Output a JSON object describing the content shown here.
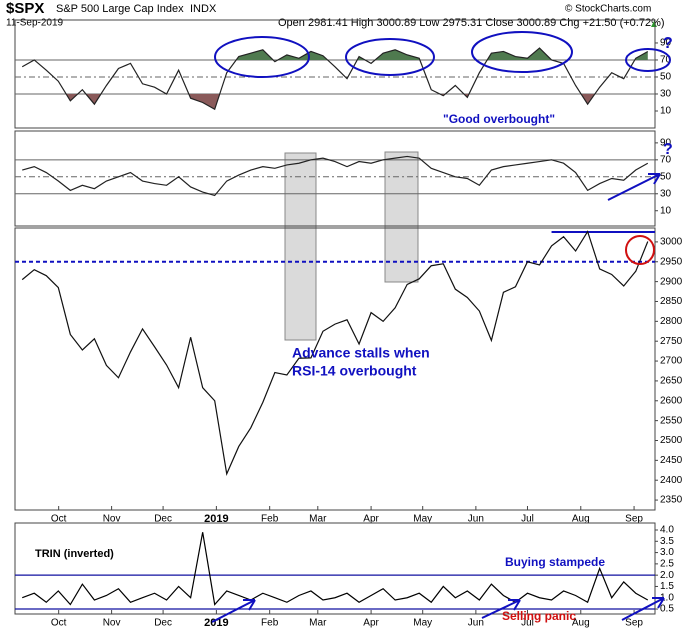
{
  "header": {
    "symbol": "$SPX",
    "name": "S&P 500 Large Cap Index",
    "exchange": "INDX",
    "date": "11-Sep-2019",
    "quote": "Open 2981.41 High 3000.89 Low 2975.31 Close 3000.89 Chg +21.50 (+0.72%)",
    "credit": "© StockCharts.com"
  },
  "annotations": {
    "q1": "?",
    "q2": "?",
    "good_overbought": "\"Good overbought\"",
    "stalls_1": "Advance stalls when",
    "stalls_2": "RSI-14 overbought",
    "trin": "TRIN (inverted)",
    "stampede": "Buying stampede",
    "panic": "Selling panic"
  },
  "chart_data": [
    {
      "type": "line",
      "color": "#222222",
      "upper_fill": 70,
      "upper_color": "#4f7a4f",
      "lower_fill": 30,
      "lower_color": "#8a5a5a",
      "ylim": [
        -10,
        117
      ],
      "yticks": [
        10,
        30,
        50,
        70,
        90
      ],
      "hlines": [
        70,
        50,
        30
      ],
      "xlim": [
        -0.6,
        52.6
      ],
      "values": [
        62,
        70,
        58,
        45,
        22,
        35,
        18,
        40,
        60,
        66,
        42,
        38,
        30,
        58,
        25,
        20,
        12,
        55,
        74,
        78,
        82,
        68,
        76,
        72,
        80,
        75,
        62,
        48,
        74,
        66,
        78,
        82,
        76,
        72,
        35,
        28,
        40,
        26,
        55,
        78,
        80,
        74,
        72,
        84,
        70,
        66,
        40,
        18,
        38,
        55,
        48,
        72,
        80
      ]
    },
    {
      "type": "line",
      "color": "#222222",
      "ylim": [
        -8,
        104
      ],
      "yticks": [
        10,
        30,
        50,
        70,
        90
      ],
      "hlines": [
        70,
        50,
        30
      ],
      "xlim": [
        -0.6,
        52.6
      ],
      "values": [
        58,
        62,
        55,
        45,
        34,
        40,
        36,
        45,
        50,
        55,
        45,
        42,
        40,
        50,
        38,
        32,
        28,
        45,
        52,
        58,
        62,
        60,
        64,
        66,
        70,
        72,
        68,
        62,
        68,
        66,
        70,
        72,
        74,
        72,
        60,
        55,
        50,
        48,
        40,
        58,
        62,
        64,
        66,
        68,
        70,
        66,
        55,
        34,
        42,
        48,
        46,
        58,
        66
      ]
    },
    {
      "type": "line",
      "color": "#111111",
      "ylim": [
        2325,
        3035
      ],
      "yticks": [
        2350,
        2400,
        2450,
        2500,
        2550,
        2600,
        2650,
        2700,
        2750,
        2800,
        2850,
        2900,
        2950,
        3000
      ],
      "xlim": [
        -0.6,
        52.6
      ],
      "xticks": [
        {
          "value": 3.03,
          "label": "Oct"
        },
        {
          "value": 7.43,
          "label": "Nov"
        },
        {
          "value": 11.71,
          "label": "Dec"
        },
        {
          "value": 16.14,
          "label": "2019"
        },
        {
          "value": 20.57,
          "label": "Feb"
        },
        {
          "value": 24.57,
          "label": "Mar"
        },
        {
          "value": 29,
          "label": "Apr"
        },
        {
          "value": 33.29,
          "label": "May"
        },
        {
          "value": 37.71,
          "label": "Jun"
        },
        {
          "value": 42,
          "label": "Jul"
        },
        {
          "value": 46.43,
          "label": "Aug"
        },
        {
          "value": 50.86,
          "label": "Sep"
        }
      ],
      "reference_lines": [
        {
          "value": 2950,
          "style": "dashed",
          "color": "#1010c0"
        },
        {
          "value": 3025,
          "style": "solid",
          "color": "#1010c0",
          "from": 44
        }
      ],
      "values": [
        2905,
        2930,
        2915,
        2885,
        2767,
        2728,
        2756,
        2689,
        2658,
        2723,
        2781,
        2736,
        2690,
        2633,
        2760,
        2633,
        2600,
        2416,
        2485,
        2532,
        2596,
        2671,
        2665,
        2707,
        2708,
        2775,
        2793,
        2804,
        2743,
        2822,
        2800,
        2834,
        2893,
        2907,
        2940,
        2945,
        2881,
        2860,
        2826,
        2752,
        2873,
        2887,
        2950,
        2942,
        2990,
        3013,
        2977,
        3026,
        2932,
        2918,
        2889,
        2926,
        3001
      ]
    },
    {
      "type": "line",
      "color": "#000000",
      "ylim": [
        0.28,
        4.31
      ],
      "yticks": [
        0.5,
        {
          "value": 1,
          "label": "1.0"
        },
        1.5,
        {
          "value": 2,
          "label": "2.0"
        },
        2.5,
        {
          "value": 3,
          "label": "3.0"
        },
        3.5,
        {
          "value": 4,
          "label": "4.0"
        }
      ],
      "hlines": [
        2,
        0.5
      ],
      "hline_color": "#1010a0",
      "xlim": [
        -0.6,
        52.6
      ],
      "xticks": [
        {
          "value": 3.03,
          "label": "Oct"
        },
        {
          "value": 7.43,
          "label": "Nov"
        },
        {
          "value": 11.71,
          "label": "Dec"
        },
        {
          "value": 16.14,
          "label": "2019"
        },
        {
          "value": 20.57,
          "label": "Feb"
        },
        {
          "value": 24.57,
          "label": "Mar"
        },
        {
          "value": 29,
          "label": "Apr"
        },
        {
          "value": 33.29,
          "label": "May"
        },
        {
          "value": 37.71,
          "label": "Jun"
        },
        {
          "value": 42,
          "label": "Jul"
        },
        {
          "value": 46.43,
          "label": "Aug"
        },
        {
          "value": 50.86,
          "label": "Sep"
        }
      ],
      "values": [
        1.0,
        1.2,
        0.8,
        1.3,
        0.7,
        1.6,
        0.9,
        1.1,
        1.4,
        0.8,
        1.0,
        1.2,
        0.9,
        1.5,
        1.0,
        3.9,
        0.7,
        1.3,
        1.1,
        0.9,
        1.2,
        1.0,
        0.8,
        1.1,
        1.3,
        0.9,
        1.0,
        1.2,
        0.8,
        1.1,
        1.4,
        0.9,
        1.0,
        1.2,
        0.8,
        1.5,
        1.0,
        1.3,
        0.9,
        1.6,
        1.1,
        0.8,
        1.2,
        1.0,
        0.9,
        1.3,
        1.1,
        0.8,
        2.3,
        1.0,
        1.7,
        1.2,
        0.9
      ]
    }
  ]
}
